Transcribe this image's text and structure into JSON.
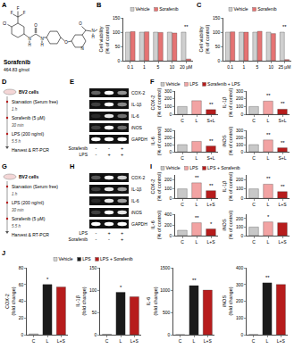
{
  "panel_labels": [
    "A",
    "B",
    "C",
    "D",
    "E",
    "F",
    "G",
    "H",
    "I",
    "J"
  ],
  "structure": {
    "name": "Sorafenib",
    "mass": "464.83 g/mol",
    "atoms": [
      "F",
      "F",
      "F",
      "Cl",
      "N",
      "H",
      "O",
      "N",
      "H",
      "O",
      "N",
      "O",
      "N",
      "H"
    ]
  },
  "protocols": [
    {
      "cells": "BV2 cells",
      "steps": [
        {
          "text": "Starvation (Serum free)",
          "time": "1 h"
        },
        {
          "text": "Sorafenib (5 µM)",
          "time": "30 min"
        },
        {
          "text": "LPS (200 ng/ml)",
          "time": "5.5 h"
        },
        {
          "text": "Harvest & RT-PCR"
        }
      ]
    },
    {
      "cells": "BV2 cells",
      "steps": [
        {
          "text": "Starvation (Serum free)",
          "time": "1 h"
        },
        {
          "text": "LPS (200 ng/ml)",
          "time": "30 min"
        },
        {
          "text": "Sorafenib (5 µM)",
          "time": "5.5 h"
        },
        {
          "text": "Harvest & RT-PCR"
        }
      ]
    }
  ],
  "gels": [
    {
      "rows": [
        {
          "name": "COX-2",
          "intensity": [
            0.35,
            1,
            0.55
          ]
        },
        {
          "name": "IL-1β",
          "intensity": [
            0.2,
            1,
            0.5
          ]
        },
        {
          "name": "IL-6",
          "intensity": [
            0.1,
            0.9,
            0.4
          ]
        },
        {
          "name": "iNOS",
          "intensity": [
            0.2,
            1,
            0.4
          ]
        },
        {
          "name": "GAPDH",
          "intensity": [
            1,
            1,
            1
          ]
        }
      ],
      "conditions": [
        {
          "name": "Sorafenib",
          "signs": [
            "-",
            "-",
            "+"
          ]
        },
        {
          "name": "LPS",
          "signs": [
            "-",
            "+",
            "+"
          ]
        }
      ]
    },
    {
      "rows": [
        {
          "name": "COX-2",
          "intensity": [
            0.3,
            1,
            0.8
          ]
        },
        {
          "name": "IL-1β",
          "intensity": [
            0.2,
            0.9,
            0.6
          ]
        },
        {
          "name": "IL-6",
          "intensity": [
            0.1,
            0.9,
            0.6
          ]
        },
        {
          "name": "iNOS",
          "intensity": [
            0.2,
            1,
            0.9
          ]
        },
        {
          "name": "GAPDH",
          "intensity": [
            1,
            1,
            1
          ]
        }
      ],
      "conditions": [
        {
          "name": "LPS",
          "signs": [
            "-",
            "+",
            "+"
          ]
        },
        {
          "name": "Sorafenib",
          "signs": [
            "-",
            "-",
            "+"
          ]
        }
      ]
    }
  ],
  "legends": [
    {
      "entries": [
        {
          "name": "Vehicle",
          "color": "#c8c8c8"
        },
        {
          "name": "LPS",
          "color": "#f2a3a3"
        },
        {
          "name": "Sorafenib + LPS",
          "color": "#b71c1c"
        }
      ]
    },
    {
      "entries": [
        {
          "name": "Vehicle",
          "color": "#c8c8c8"
        },
        {
          "name": "LPS",
          "color": "#f2a3a3"
        },
        {
          "name": "LPS + Sorafenib",
          "color": "#b71c1c"
        }
      ]
    },
    {
      "entries": [
        {
          "name": "Vehicle",
          "color": "#d3d3d3"
        },
        {
          "name": "LPS",
          "color": "#1a1a1a"
        },
        {
          "name": "LPS + Sorafenib",
          "color": "#b71c1c"
        }
      ]
    }
  ],
  "chart_data": [
    {
      "type": "bar",
      "y_label": [
        "Cell viability",
        "(% of control)"
      ],
      "categories": [
        "0.1",
        "1",
        "5",
        "10",
        "20 µM"
      ],
      "series": [
        {
          "name": "Vehicle",
          "color": "#cfcfcf",
          "values": [
            100,
            100,
            100,
            100,
            100
          ]
        },
        {
          "name": "Sorafenib",
          "color": "#e57373",
          "values": [
            102,
            101,
            99,
            97,
            6
          ]
        }
      ],
      "ylim": [
        0,
        150
      ],
      "yticks": [
        0,
        50,
        100,
        150
      ],
      "grid": false,
      "annotations": [
        {
          "category": "20 µM",
          "text": "**"
        }
      ]
    },
    {
      "type": "bar",
      "y_label": [
        "Cell viability",
        "(% of control)"
      ],
      "categories": [
        "0.1",
        "1",
        "5",
        "10",
        "25 µM"
      ],
      "series": [
        {
          "name": "Vehicle",
          "color": "#cfcfcf",
          "values": [
            100,
            100,
            100,
            100,
            100
          ]
        },
        {
          "name": "Sorafenib",
          "color": "#e57373",
          "values": [
            101,
            100,
            103,
            95,
            4
          ]
        }
      ],
      "ylim": [
        0,
        150
      ],
      "yticks": [
        0,
        50,
        100,
        150
      ],
      "grid": false,
      "annotations": [
        {
          "category": "25 µM",
          "text": "**"
        }
      ]
    },
    {
      "type": "bar",
      "y_label": [
        "COX-2",
        "(% of control)"
      ],
      "categories": [
        "C",
        "L",
        "S+L"
      ],
      "values": [
        100,
        175,
        60
      ],
      "colors": [
        "#c8c8c8",
        "#f2a3a3",
        "#b71c1c"
      ],
      "ylim": [
        0,
        300
      ],
      "yticks": [
        0,
        100,
        200,
        300
      ],
      "grid": false,
      "annotations": [
        {
          "category": "S+L",
          "text": "**"
        }
      ]
    },
    {
      "type": "bar",
      "y_label": [
        "IL-1β",
        "(% of control)"
      ],
      "categories": [
        "C",
        "L",
        "S+L"
      ],
      "values": [
        100,
        170,
        65
      ],
      "colors": [
        "#c8c8c8",
        "#f2a3a3",
        "#b71c1c"
      ],
      "ylim": [
        0,
        300
      ],
      "yticks": [
        0,
        100,
        200,
        300
      ],
      "grid": false,
      "annotations": [
        {
          "category": "L",
          "text": "**"
        },
        {
          "category": "S+L",
          "text": "**"
        }
      ]
    },
    {
      "type": "bar",
      "y_label": [
        "IL-6",
        "(% of control)"
      ],
      "categories": [
        "C",
        "L",
        "S+L"
      ],
      "values": [
        100,
        145,
        80
      ],
      "colors": [
        "#c8c8c8",
        "#f2a3a3",
        "#b71c1c"
      ],
      "ylim": [
        0,
        300
      ],
      "yticks": [
        0,
        100,
        200,
        300
      ],
      "grid": false,
      "annotations": [
        {
          "category": "S+L",
          "text": "**"
        }
      ]
    },
    {
      "type": "bar",
      "y_label": [
        "iNOS",
        "(% of control)"
      ],
      "categories": [
        "C",
        "L",
        "S+L"
      ],
      "values": [
        100,
        165,
        55
      ],
      "colors": [
        "#c8c8c8",
        "#f2a3a3",
        "#b71c1c"
      ],
      "ylim": [
        0,
        300
      ],
      "yticks": [
        0,
        100,
        200,
        300
      ],
      "grid": false,
      "annotations": [
        {
          "category": "L",
          "text": "**"
        },
        {
          "category": "S+L",
          "text": "**"
        }
      ]
    },
    {
      "type": "bar",
      "y_label": [
        "COX-2",
        "(% of control)"
      ],
      "categories": [
        "C",
        "L",
        "L+S"
      ],
      "values": [
        100,
        165,
        80
      ],
      "colors": [
        "#c8c8c8",
        "#f2a3a3",
        "#b71c1c"
      ],
      "ylim": [
        0,
        250
      ],
      "yticks": [
        0,
        100,
        200
      ],
      "grid": false,
      "annotations": [
        {
          "category": "L",
          "text": "**"
        },
        {
          "category": "L+S",
          "text": "**"
        }
      ]
    },
    {
      "type": "bar",
      "y_label": [
        "IL-1β",
        "(% of control)"
      ],
      "categories": [
        "C",
        "L",
        "L+S"
      ],
      "values": [
        100,
        150,
        70
      ],
      "colors": [
        "#c8c8c8",
        "#f2a3a3",
        "#b71c1c"
      ],
      "ylim": [
        0,
        250
      ],
      "yticks": [
        0,
        100,
        200
      ],
      "grid": false,
      "annotations": [
        {
          "category": "L",
          "text": "**"
        },
        {
          "category": "L+S",
          "text": "**"
        }
      ]
    },
    {
      "type": "bar",
      "y_label": [
        "IL-6",
        "(% of control)"
      ],
      "categories": [
        "C",
        "L",
        "L+S"
      ],
      "values": [
        100,
        240,
        125
      ],
      "colors": [
        "#c8c8c8",
        "#f2a3a3",
        "#b71c1c"
      ],
      "ylim": [
        0,
        400
      ],
      "yticks": [
        0,
        200,
        400
      ],
      "grid": false,
      "annotations": [
        {
          "category": "L",
          "text": "**"
        },
        {
          "category": "L+S",
          "text": "*"
        }
      ]
    },
    {
      "type": "bar",
      "y_label": [
        "iNOS",
        "(% of control)"
      ],
      "categories": [
        "C",
        "L",
        "L+S"
      ],
      "values": [
        100,
        160,
        150
      ],
      "colors": [
        "#c8c8c8",
        "#f2a3a3",
        "#b71c1c"
      ],
      "ylim": [
        0,
        250
      ],
      "yticks": [
        0,
        100,
        200
      ],
      "grid": false,
      "annotations": [
        {
          "category": "L",
          "text": "*"
        }
      ]
    },
    {
      "type": "bar",
      "y_label": [
        "COX-2",
        "(fold change)"
      ],
      "categories": [
        "C",
        "L",
        "L+S"
      ],
      "values": [
        1,
        60,
        57
      ],
      "colors": [
        "#d3d3d3",
        "#1a1a1a",
        "#b71c1c"
      ],
      "ylim": [
        0,
        80
      ],
      "yticks": [
        0,
        20,
        40,
        60,
        80
      ],
      "grid": false,
      "annotations": [
        {
          "category": "L",
          "text": "*"
        }
      ]
    },
    {
      "type": "bar",
      "y_label": [
        "IL-1β",
        "(fold change)"
      ],
      "categories": [
        "C",
        "L",
        "L+S"
      ],
      "values": [
        1,
        95,
        85
      ],
      "colors": [
        "#d3d3d3",
        "#1a1a1a",
        "#b71c1c"
      ],
      "ylim": [
        0,
        150
      ],
      "yticks": [
        0,
        50,
        100,
        150
      ],
      "grid": false,
      "annotations": [
        {
          "category": "L",
          "text": "*"
        }
      ]
    },
    {
      "type": "bar",
      "y_label": [
        "IL-6",
        "(fold change)"
      ],
      "categories": [
        "C",
        "L",
        "L+S"
      ],
      "values": [
        1,
        1100,
        1000
      ],
      "colors": [
        "#d3d3d3",
        "#1a1a1a",
        "#b71c1c"
      ],
      "ylim": [
        0,
        1500
      ],
      "yticks": [
        0,
        500,
        1000,
        1500
      ],
      "grid": false,
      "annotations": [
        {
          "category": "L",
          "text": "**"
        }
      ]
    },
    {
      "type": "bar",
      "y_label": [
        "iNOS",
        "(fold change)"
      ],
      "categories": [
        "C",
        "L",
        "L+S"
      ],
      "values": [
        1,
        310,
        300
      ],
      "colors": [
        "#d3d3d3",
        "#1a1a1a",
        "#b71c1c"
      ],
      "ylim": [
        0,
        400
      ],
      "yticks": [
        0,
        100,
        200,
        300,
        400
      ],
      "grid": false,
      "annotations": [
        {
          "category": "L",
          "text": "**"
        }
      ]
    }
  ]
}
